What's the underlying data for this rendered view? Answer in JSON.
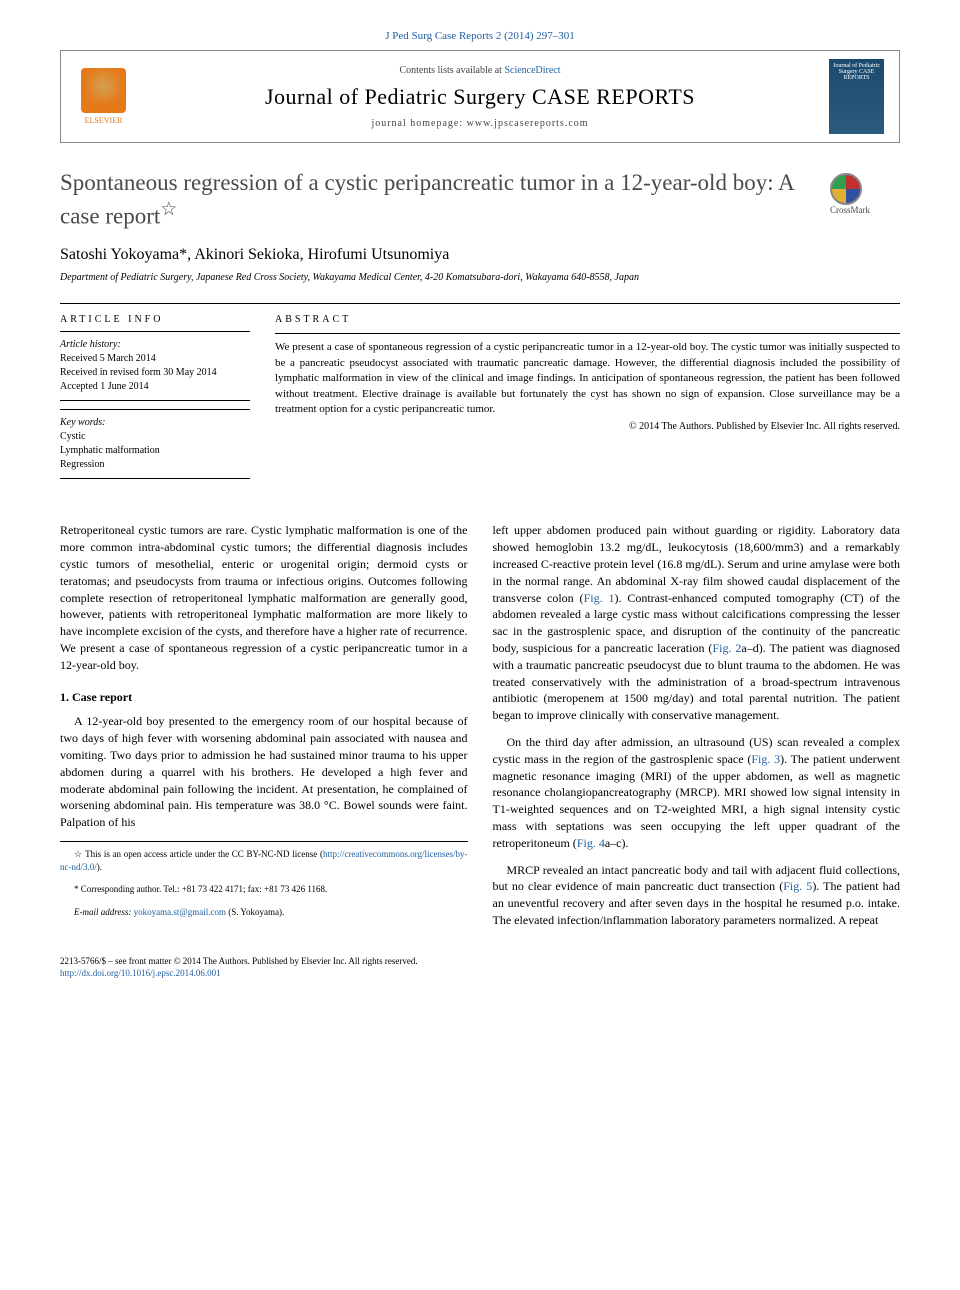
{
  "header": {
    "citation": "J Ped Surg Case Reports 2 (2014) 297–301",
    "contents_at": "Contents lists available at ",
    "sciencedirect": "ScienceDirect",
    "journal_name": "Journal of Pediatric Surgery CASE REPORTS",
    "homepage_label": "journal homepage: ",
    "homepage_url": "www.jpscasereports.com",
    "elsevier_label": "ELSEVIER",
    "cover_text": "Journal of Pediatric Surgery CASE REPORTS"
  },
  "article": {
    "title": "Spontaneous regression of a cystic peripancreatic tumor in a 12-year-old boy: A case report",
    "title_star": "☆",
    "crossmark": "CrossMark",
    "authors": "Satoshi Yokoyama*, Akinori Sekioka, Hirofumi Utsunomiya",
    "affiliation": "Department of Pediatric Surgery, Japanese Red Cross Society, Wakayama Medical Center, 4-20 Komatsubara-dori, Wakayama 640-8558, Japan"
  },
  "info": {
    "heading": "ARTICLE INFO",
    "history_label": "Article history:",
    "received": "Received 5 March 2014",
    "revised": "Received in revised form 30 May 2014",
    "accepted": "Accepted 1 June 2014",
    "keywords_label": "Key words:",
    "kw1": "Cystic",
    "kw2": "Lymphatic malformation",
    "kw3": "Regression"
  },
  "abstract": {
    "heading": "ABSTRACT",
    "text": "We present a case of spontaneous regression of a cystic peripancreatic tumor in a 12-year-old boy. The cystic tumor was initially suspected to be a pancreatic pseudocyst associated with traumatic pancreatic damage. However, the differential diagnosis included the possibility of lymphatic malformation in view of the clinical and image findings. In anticipation of spontaneous regression, the patient has been followed without treatment. Elective drainage is available but fortunately the cyst has shown no sign of expansion. Close surveillance may be a treatment option for a cystic peripancreatic tumor.",
    "copyright": "© 2014 The Authors. Published by Elsevier Inc. All rights reserved."
  },
  "body": {
    "intro": "Retroperitoneal cystic tumors are rare. Cystic lymphatic malformation is one of the more common intra-abdominal cystic tumors; the differential diagnosis includes cystic tumors of mesothelial, enteric or urogenital origin; dermoid cysts or teratomas; and pseudocysts from trauma or infectious origins. Outcomes following complete resection of retroperitoneal lymphatic malformation are generally good, however, patients with retroperitoneal lymphatic malformation are more likely to have incomplete excision of the cysts, and therefore have a higher rate of recurrence. We present a case of spontaneous regression of a cystic peripancreatic tumor in a 12-year-old boy.",
    "section1_heading": "1. Case report",
    "p1": "A 12-year-old boy presented to the emergency room of our hospital because of two days of high fever with worsening abdominal pain associated with nausea and vomiting. Two days prior to admission he had sustained minor trauma to his upper abdomen during a quarrel with his brothers. He developed a high fever and moderate abdominal pain following the incident. At presentation, he complained of worsening abdominal pain. His temperature was 38.0 °C. Bowel sounds were faint. Palpation of his",
    "p2a": "left upper abdomen produced pain without guarding or rigidity. Laboratory data showed hemoglobin 13.2 mg/dL, leukocytosis (18,600/mm3) and a remarkably increased C-reactive protein level (16.8 mg/dL). Serum and urine amylase were both in the normal range. An abdominal X-ray film showed caudal displacement of the transverse colon (",
    "fig1": "Fig. 1",
    "p2b": "). Contrast-enhanced computed tomography (CT) of the abdomen revealed a large cystic mass without calcifications compressing the lesser sac in the gastrosplenic space, and disruption of the continuity of the pancreatic body, suspicious for a pancreatic laceration (",
    "fig2": "Fig. 2",
    "p2c": "a–d). The patient was diagnosed with a traumatic pancreatic pseudocyst due to blunt trauma to the abdomen. He was treated conservatively with the administration of a broad-spectrum intravenous antibiotic (meropenem at 1500 mg/day) and total parental nutrition. The patient began to improve clinically with conservative management.",
    "p3a": "On the third day after admission, an ultrasound (US) scan revealed a complex cystic mass in the region of the gastrosplenic space (",
    "fig3": "Fig. 3",
    "p3b": "). The patient underwent magnetic resonance imaging (MRI) of the upper abdomen, as well as magnetic resonance cholangiopancreatography (MRCP). MRI showed low signal intensity in T1-weighted sequences and on T2-weighted MRI, a high signal intensity cystic mass with septations was seen occupying the left upper quadrant of the retroperitoneum (",
    "fig4": "Fig. 4",
    "p3c": "a–c).",
    "p4a": "MRCP revealed an intact pancreatic body and tail with adjacent fluid collections, but no clear evidence of main pancreatic duct transection (",
    "fig5": "Fig. 5",
    "p4b": "). The patient had an uneventful recovery and after seven days in the hospital he resumed p.o. intake. The elevated infection/inflammation laboratory parameters normalized. A repeat"
  },
  "footnotes": {
    "oa": "☆ This is an open access article under the CC BY-NC-ND license (",
    "oa_url": "http://creativecommons.org/licenses/by-nc-nd/3.0/",
    "oa_close": ").",
    "corr": "* Corresponding author. Tel.: +81 73 422 4171; fax: +81 73 426 1168.",
    "email_label": "E-mail address: ",
    "email": "yokoyama.st@gmail.com",
    "email_suffix": " (S. Yokoyama)."
  },
  "footer": {
    "issn": "2213-5766/$ – see front matter © 2014 The Authors. Published by Elsevier Inc. All rights reserved.",
    "doi": "http://dx.doi.org/10.1016/j.epsc.2014.06.001"
  }
}
